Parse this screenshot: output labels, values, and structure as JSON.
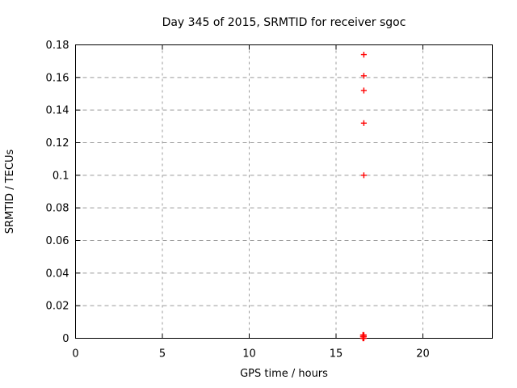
{
  "chart_data": {
    "type": "scatter",
    "title": "Day 345 of 2015, SRMTID for receiver sgoc",
    "xlabel": "GPS time / hours",
    "ylabel": "SRMTID / TECUs",
    "xlim": [
      0,
      24
    ],
    "ylim": [
      0,
      0.18
    ],
    "xticks": [
      0,
      5,
      10,
      15,
      20
    ],
    "yticks": [
      0,
      0.02,
      0.04,
      0.06,
      0.08,
      0.1,
      0.12,
      0.14,
      0.16,
      0.18
    ],
    "grid": true,
    "legend_position": "none",
    "marker": "plus",
    "colors": {
      "marker": "#ff0000",
      "grid": "#9b9b9b",
      "border": "#000000",
      "text": "#000000",
      "background": "#ffffff"
    },
    "series": [
      {
        "name": "SRMTID",
        "points": [
          {
            "x": 16.6,
            "y": 0.174
          },
          {
            "x": 16.6,
            "y": 0.161
          },
          {
            "x": 16.6,
            "y": 0.152
          },
          {
            "x": 16.6,
            "y": 0.132
          },
          {
            "x": 16.6,
            "y": 0.1
          },
          {
            "x": 16.55,
            "y": 0.002
          },
          {
            "x": 16.6,
            "y": 0.002
          },
          {
            "x": 16.55,
            "y": 0.001
          },
          {
            "x": 16.6,
            "y": 0.001
          },
          {
            "x": 16.55,
            "y": 0
          },
          {
            "x": 16.6,
            "y": 0
          }
        ]
      }
    ]
  }
}
